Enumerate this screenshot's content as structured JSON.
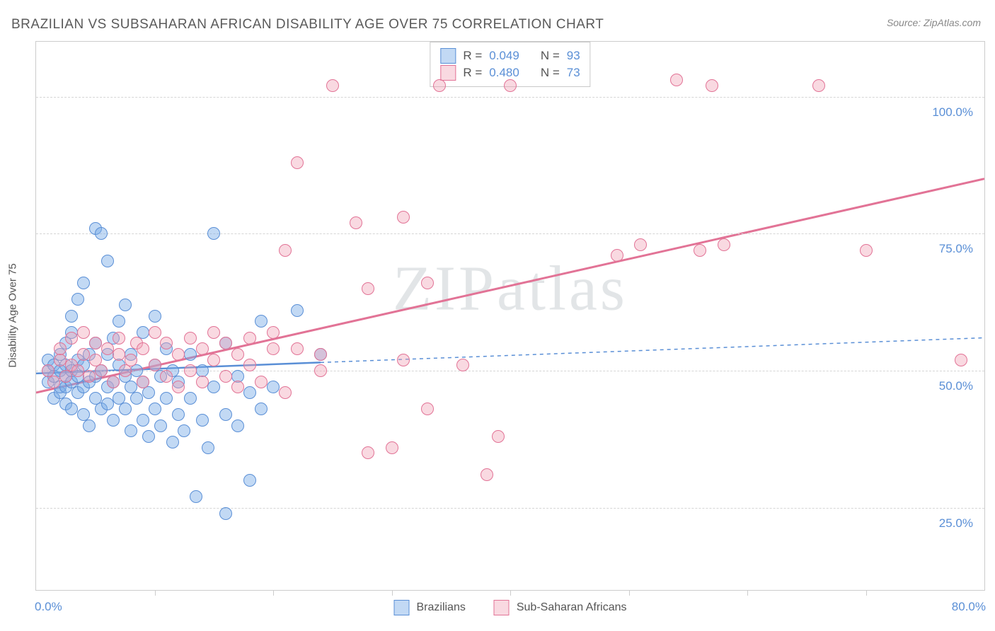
{
  "title": "BRAZILIAN VS SUBSAHARAN AFRICAN DISABILITY AGE OVER 75 CORRELATION CHART",
  "source": "Source: ZipAtlas.com",
  "watermark": "ZIPatlas",
  "ylabel": "Disability Age Over 75",
  "chart": {
    "type": "scatter",
    "xlim": [
      0,
      80
    ],
    "ylim": [
      10,
      110
    ],
    "x_ticks": [
      0,
      10,
      20,
      30,
      40,
      50,
      60,
      70,
      80
    ],
    "x_tick_labels": [
      "0.0%",
      "",
      "",
      "",
      "",
      "",
      "",
      "",
      "80.0%"
    ],
    "y_gridlines": [
      25,
      50,
      75,
      100
    ],
    "y_tick_labels": [
      "25.0%",
      "50.0%",
      "75.0%",
      "100.0%"
    ],
    "gridline_color": "#d5d5d5",
    "axis_color": "#cccccc",
    "tick_label_color": "#5a8fd6",
    "background_color": "#ffffff",
    "marker_size": 18,
    "series": [
      {
        "name": "Brazilians",
        "fill_color": "rgba(120,170,230,0.45)",
        "stroke_color": "#5a8fd6",
        "R": "0.049",
        "N": "93",
        "trend": {
          "x1": 0,
          "y1": 49.5,
          "x2_solid": 24,
          "y2_solid": 51.5,
          "x2_dash": 80,
          "y2_dash": 56,
          "stroke_width_solid": 2.5,
          "stroke_width_dash": 1.5,
          "dash_pattern": "5,5"
        },
        "points": [
          [
            1,
            48
          ],
          [
            1,
            50
          ],
          [
            1,
            52
          ],
          [
            1.5,
            45
          ],
          [
            1.5,
            49
          ],
          [
            1.5,
            51
          ],
          [
            2,
            46
          ],
          [
            2,
            47
          ],
          [
            2,
            50
          ],
          [
            2,
            53
          ],
          [
            2.5,
            44
          ],
          [
            2.5,
            47
          ],
          [
            2.5,
            49
          ],
          [
            2.5,
            51
          ],
          [
            2.5,
            55
          ],
          [
            3,
            43
          ],
          [
            3,
            48
          ],
          [
            3,
            50
          ],
          [
            3,
            57
          ],
          [
            3,
            60
          ],
          [
            3.5,
            46
          ],
          [
            3.5,
            49
          ],
          [
            3.5,
            52
          ],
          [
            3.5,
            63
          ],
          [
            4,
            42
          ],
          [
            4,
            47
          ],
          [
            4,
            51
          ],
          [
            4,
            66
          ],
          [
            4.5,
            40
          ],
          [
            4.5,
            48
          ],
          [
            4.5,
            53
          ],
          [
            5,
            45
          ],
          [
            5,
            49
          ],
          [
            5,
            55
          ],
          [
            5,
            76
          ],
          [
            5.5,
            43
          ],
          [
            5.5,
            50
          ],
          [
            5.5,
            75
          ],
          [
            6,
            44
          ],
          [
            6,
            47
          ],
          [
            6,
            53
          ],
          [
            6,
            70
          ],
          [
            6.5,
            41
          ],
          [
            6.5,
            48
          ],
          [
            6.5,
            56
          ],
          [
            7,
            45
          ],
          [
            7,
            51
          ],
          [
            7,
            59
          ],
          [
            7.5,
            43
          ],
          [
            7.5,
            49
          ],
          [
            7.5,
            62
          ],
          [
            8,
            39
          ],
          [
            8,
            47
          ],
          [
            8,
            53
          ],
          [
            8.5,
            45
          ],
          [
            8.5,
            50
          ],
          [
            9,
            41
          ],
          [
            9,
            48
          ],
          [
            9,
            57
          ],
          [
            9.5,
            38
          ],
          [
            9.5,
            46
          ],
          [
            10,
            43
          ],
          [
            10,
            51
          ],
          [
            10,
            60
          ],
          [
            10.5,
            40
          ],
          [
            10.5,
            49
          ],
          [
            11,
            45
          ],
          [
            11,
            54
          ],
          [
            11.5,
            37
          ],
          [
            11.5,
            50
          ],
          [
            12,
            42
          ],
          [
            12,
            48
          ],
          [
            12.5,
            39
          ],
          [
            13,
            45
          ],
          [
            13,
            53
          ],
          [
            13.5,
            27
          ],
          [
            14,
            41
          ],
          [
            14,
            50
          ],
          [
            14.5,
            36
          ],
          [
            15,
            47
          ],
          [
            15,
            75
          ],
          [
            16,
            24
          ],
          [
            16,
            42
          ],
          [
            16,
            55
          ],
          [
            17,
            40
          ],
          [
            17,
            49
          ],
          [
            18,
            46
          ],
          [
            18,
            30
          ],
          [
            19,
            43
          ],
          [
            19,
            59
          ],
          [
            20,
            47
          ],
          [
            22,
            61
          ],
          [
            24,
            53
          ]
        ]
      },
      {
        "name": "Sub-Saharan Africans",
        "fill_color": "rgba(240,160,180,0.40)",
        "stroke_color": "#e27396",
        "R": "0.480",
        "N": "73",
        "trend": {
          "x1": 0,
          "y1": 46,
          "x2_solid": 80,
          "y2_solid": 85,
          "x2_dash": 80,
          "y2_dash": 85,
          "stroke_width_solid": 3,
          "stroke_width_dash": 0,
          "dash_pattern": ""
        },
        "points": [
          [
            1,
            50
          ],
          [
            1.5,
            48
          ],
          [
            2,
            52
          ],
          [
            2,
            54
          ],
          [
            2.5,
            49
          ],
          [
            3,
            51
          ],
          [
            3,
            56
          ],
          [
            3.5,
            50
          ],
          [
            4,
            53
          ],
          [
            4,
            57
          ],
          [
            4.5,
            49
          ],
          [
            5,
            52
          ],
          [
            5,
            55
          ],
          [
            5.5,
            50
          ],
          [
            6,
            54
          ],
          [
            6.5,
            48
          ],
          [
            7,
            53
          ],
          [
            7,
            56
          ],
          [
            7.5,
            50
          ],
          [
            8,
            52
          ],
          [
            8.5,
            55
          ],
          [
            9,
            48
          ],
          [
            9,
            54
          ],
          [
            10,
            51
          ],
          [
            10,
            57
          ],
          [
            11,
            49
          ],
          [
            11,
            55
          ],
          [
            12,
            47
          ],
          [
            12,
            53
          ],
          [
            13,
            50
          ],
          [
            13,
            56
          ],
          [
            14,
            48
          ],
          [
            14,
            54
          ],
          [
            15,
            52
          ],
          [
            15,
            57
          ],
          [
            16,
            49
          ],
          [
            16,
            55
          ],
          [
            17,
            47
          ],
          [
            17,
            53
          ],
          [
            18,
            51
          ],
          [
            18,
            56
          ],
          [
            19,
            48
          ],
          [
            20,
            54
          ],
          [
            20,
            57
          ],
          [
            21,
            46
          ],
          [
            21,
            72
          ],
          [
            22,
            88
          ],
          [
            22,
            54
          ],
          [
            24,
            50
          ],
          [
            24,
            53
          ],
          [
            25,
            102
          ],
          [
            27,
            77
          ],
          [
            28,
            65
          ],
          [
            28,
            35
          ],
          [
            30,
            36
          ],
          [
            31,
            52
          ],
          [
            31,
            78
          ],
          [
            33,
            43
          ],
          [
            33,
            66
          ],
          [
            34,
            102
          ],
          [
            36,
            51
          ],
          [
            38,
            31
          ],
          [
            39,
            38
          ],
          [
            40,
            102
          ],
          [
            49,
            71
          ],
          [
            51,
            73
          ],
          [
            54,
            103
          ],
          [
            56,
            72
          ],
          [
            57,
            102
          ],
          [
            58,
            73
          ],
          [
            66,
            102
          ],
          [
            70,
            72
          ],
          [
            78,
            52
          ]
        ]
      }
    ]
  },
  "legend_top": {
    "rows": [
      {
        "swatch": "blue",
        "r_label": "R =",
        "r_val": "0.049",
        "n_label": "N =",
        "n_val": "93"
      },
      {
        "swatch": "pink",
        "r_label": "R =",
        "r_val": "0.480",
        "n_label": "N =",
        "n_val": "73"
      }
    ]
  },
  "legend_bottom": [
    {
      "swatch": "blue",
      "label": "Brazilians"
    },
    {
      "swatch": "pink",
      "label": "Sub-Saharan Africans"
    }
  ]
}
